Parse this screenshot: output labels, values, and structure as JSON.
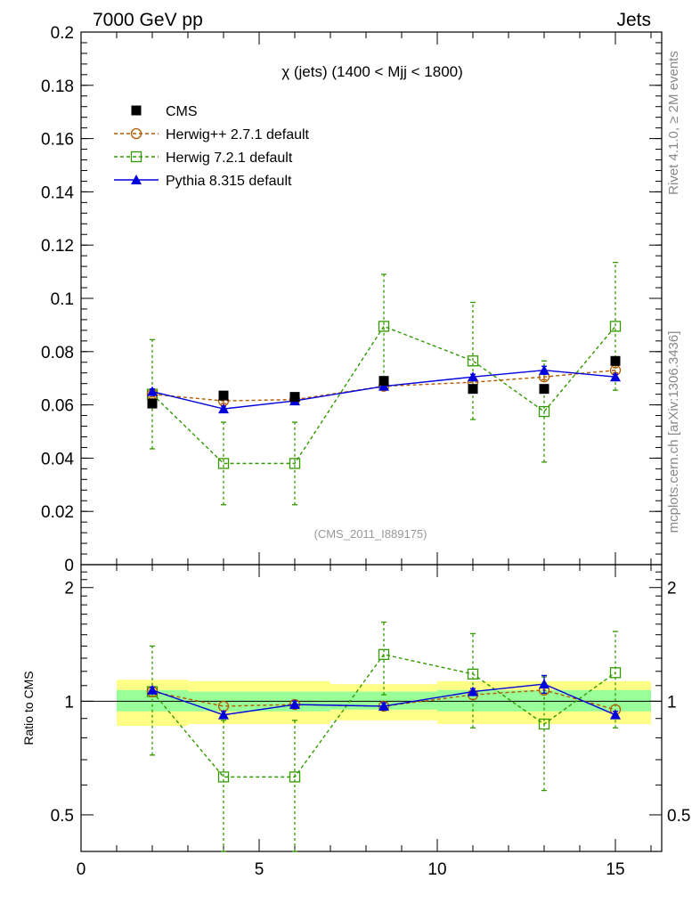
{
  "header": {
    "left": "7000 GeV pp",
    "right": "Jets"
  },
  "side_labels": {
    "rivet": "Rivet 4.1.0, ≥ 2M events",
    "mcplots": "mcplots.cern.ch [arXiv:1306.3436]"
  },
  "colors": {
    "cms": "#000000",
    "herwigpp": "#b35900",
    "herwig7": "#339900",
    "pythia": "#0000dd",
    "band_inner": "#99ff99",
    "band_outer": "#ffff88"
  },
  "chart_data": {
    "type": "line",
    "title": "χ (jets) (1400 < Mjj < 1800)",
    "watermark": "(CMS_2011_I889175)",
    "xlabel": "",
    "ylabel_main": "",
    "ylabel_ratio": "Ratio to CMS",
    "xlim": [
      0,
      16.3
    ],
    "main": {
      "ylim": [
        0,
        0.2
      ],
      "yticks": [
        0,
        0.02,
        0.04,
        0.06,
        0.08,
        0.1,
        0.12,
        0.14,
        0.16,
        0.18,
        0.2
      ],
      "ytick_labels": [
        "0",
        "0.02",
        "0.04",
        "0.06",
        "0.08",
        "0.1",
        "0.12",
        "0.14",
        "0.16",
        "0.18",
        "0.2"
      ]
    },
    "ratio": {
      "ylim": [
        0.4,
        2.3
      ],
      "yticks": [
        0.5,
        1,
        2
      ],
      "ytick_labels": [
        "0.5",
        "1",
        "2"
      ]
    },
    "xticks": [
      0,
      5,
      10,
      15
    ],
    "xtick_labels": [
      "0",
      "5",
      "10",
      "15"
    ],
    "legend": {
      "position": "top-left",
      "entries": [
        "CMS",
        "Herwig++ 2.7.1 default",
        "Herwig 7.2.1 default",
        "Pythia 8.315 default"
      ]
    },
    "bins": [
      [
        1,
        3
      ],
      [
        3,
        5
      ],
      [
        5,
        7
      ],
      [
        7,
        10
      ],
      [
        10,
        12
      ],
      [
        12,
        14
      ],
      [
        14,
        16
      ]
    ],
    "series": [
      {
        "name": "CMS",
        "key": "cms",
        "marker": "filled-square",
        "line": "none",
        "x": [
          2,
          4,
          6,
          8.5,
          11,
          13,
          15
        ],
        "values": [
          0.0605,
          0.0635,
          0.063,
          0.069,
          0.066,
          0.066,
          0.0765
        ],
        "ratio": [
          1,
          1,
          1,
          1,
          1,
          1,
          1
        ]
      },
      {
        "name": "Herwig++ 2.7.1 default",
        "key": "herwigpp",
        "marker": "open-circle",
        "line": "dashed",
        "x": [
          2,
          4,
          6,
          8.5,
          11,
          13,
          15
        ],
        "values": [
          0.064,
          0.0615,
          0.062,
          0.067,
          0.0685,
          0.0705,
          0.073
        ],
        "errors": [
          0.001,
          0.001,
          0.001,
          0.001,
          0.001,
          0.001,
          0.001
        ],
        "ratio": [
          1.06,
          0.97,
          0.98,
          0.97,
          1.04,
          1.07,
          0.95
        ]
      },
      {
        "name": "Herwig 7.2.1 default",
        "key": "herwig7",
        "marker": "open-square",
        "line": "dashed",
        "x": [
          2,
          4,
          6,
          8.5,
          11,
          13,
          15
        ],
        "values": [
          0.064,
          0.038,
          0.038,
          0.0895,
          0.0765,
          0.0575,
          0.0895
        ],
        "errors": [
          0.0205,
          0.0155,
          0.0155,
          0.0195,
          0.022,
          0.019,
          0.024
        ],
        "ratio": [
          1.06,
          0.63,
          0.63,
          1.33,
          1.18,
          0.87,
          1.19
        ],
        "ratio_errors": [
          0.34,
          0.26,
          0.26,
          0.29,
          0.33,
          0.29,
          0.34
        ]
      },
      {
        "name": "Pythia 8.315 default",
        "key": "pythia",
        "marker": "filled-triangle",
        "line": "solid",
        "x": [
          2,
          4,
          6,
          8.5,
          11,
          13,
          15
        ],
        "values": [
          0.065,
          0.0585,
          0.0615,
          0.067,
          0.0705,
          0.073,
          0.0705
        ],
        "errors": [
          0.001,
          0.001,
          0.001,
          0.001,
          0.001,
          0.0015,
          0.001
        ],
        "ratio": [
          1.07,
          0.92,
          0.98,
          0.97,
          1.06,
          1.11,
          0.92
        ],
        "ratio_errors": [
          0.02,
          0.02,
          0.02,
          0.02,
          0.02,
          0.06,
          0.02
        ]
      }
    ],
    "band_inner": [
      [
        0.94,
        1.07
      ],
      [
        0.94,
        1.06
      ],
      [
        0.94,
        1.06
      ],
      [
        0.95,
        1.06
      ],
      [
        0.94,
        1.07
      ],
      [
        0.94,
        1.07
      ],
      [
        0.94,
        1.07
      ]
    ],
    "band_outer": [
      [
        0.86,
        1.14
      ],
      [
        0.87,
        1.13
      ],
      [
        0.87,
        1.13
      ],
      [
        0.89,
        1.11
      ],
      [
        0.87,
        1.13
      ],
      [
        0.87,
        1.13
      ],
      [
        0.87,
        1.13
      ]
    ]
  }
}
